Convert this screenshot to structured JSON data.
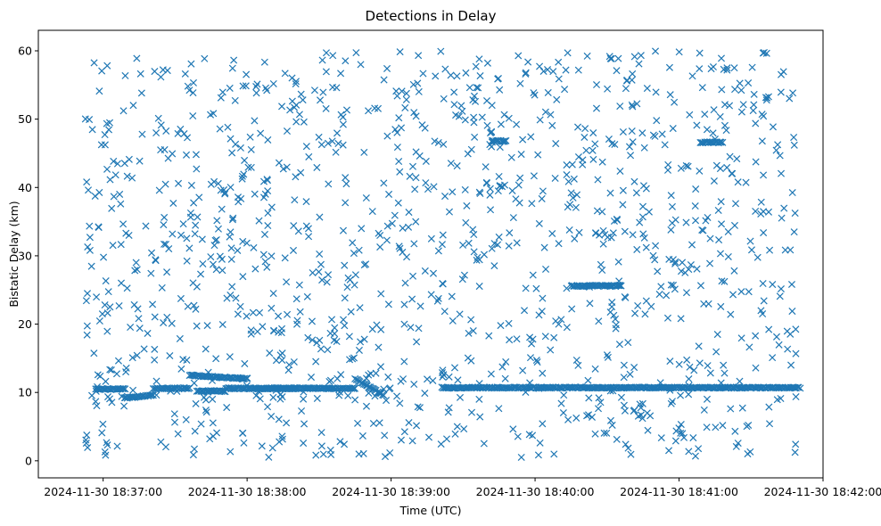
{
  "chart_data": {
    "type": "scatter",
    "title": "Detections in Delay",
    "xlabel": "Time (UTC)",
    "ylabel": "Bistatic Delay (km)",
    "marker": "x",
    "color": "#1f77b4",
    "x_unit": "minutes after 2024-11-30 18:36:00",
    "xlim": [
      0.55,
      6.0
    ],
    "ylim": [
      -2.5,
      63.0
    ],
    "x_ticks": [
      {
        "value": 1,
        "label": "2024-11-30 18:37:00"
      },
      {
        "value": 2,
        "label": "2024-11-30 18:38:00"
      },
      {
        "value": 3,
        "label": "2024-11-30 18:39:00"
      },
      {
        "value": 4,
        "label": "2024-11-30 18:40:00"
      },
      {
        "value": 5,
        "label": "2024-11-30 18:41:00"
      },
      {
        "value": 6,
        "label": "2024-11-30 18:42:00"
      }
    ],
    "y_ticks": [
      {
        "value": 0,
        "label": "0"
      },
      {
        "value": 10,
        "label": "10"
      },
      {
        "value": 20,
        "label": "20"
      },
      {
        "value": 30,
        "label": "30"
      },
      {
        "value": 40,
        "label": "40"
      },
      {
        "value": 50,
        "label": "50"
      },
      {
        "value": 60,
        "label": "60"
      }
    ],
    "x_range_data": [
      0.87,
      5.84
    ],
    "dense_tracks": [
      {
        "x_start": 0.95,
        "x_end": 1.15,
        "y": 10.5
      },
      {
        "x_start": 1.15,
        "x_end": 1.35,
        "y_start": 9.2,
        "y_end": 9.6
      },
      {
        "x_start": 1.35,
        "x_end": 1.6,
        "y": 10.6
      },
      {
        "x_start": 1.6,
        "x_end": 2.0,
        "y_start": 12.5,
        "y_end": 12.0
      },
      {
        "x_start": 1.65,
        "x_end": 1.85,
        "y": 10.2
      },
      {
        "x_start": 1.85,
        "x_end": 2.35,
        "y": 10.6
      },
      {
        "x_start": 2.1,
        "x_end": 2.6,
        "y": 10.6
      },
      {
        "x_start": 2.6,
        "x_end": 2.75,
        "y": 10.6
      },
      {
        "x_start": 2.75,
        "x_end": 2.95,
        "y_start": 12.0,
        "y_end": 9.6
      },
      {
        "x_start": 3.35,
        "x_end": 5.84,
        "y": 10.7
      },
      {
        "x_start": 3.7,
        "x_end": 3.8,
        "y": 46.8
      },
      {
        "x_start": 4.25,
        "x_end": 4.6,
        "y": 25.6
      },
      {
        "x_start": 5.15,
        "x_end": 5.3,
        "y": 46.6
      }
    ],
    "scatter_background": {
      "description": "roughly uniform random detections",
      "count": 1250,
      "x_range": [
        0.87,
        5.84
      ],
      "y_range": [
        0.5,
        60.0
      ],
      "seed": 20241130
    }
  }
}
